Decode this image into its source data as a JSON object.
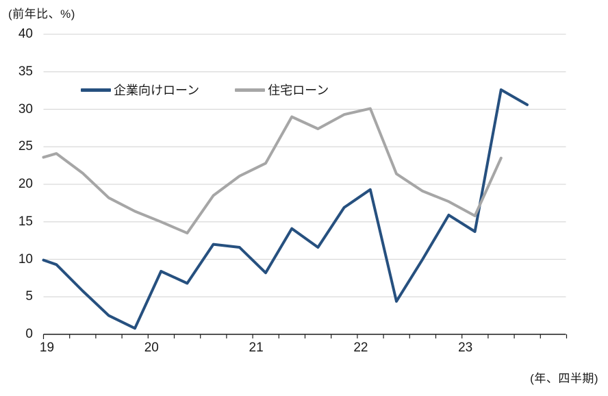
{
  "chart": {
    "unit_label": "(前年比、%)",
    "axis_note": "(年、四半期)"
  },
  "chart_data": {
    "type": "line",
    "title": "(前年比、%)",
    "x_axis_note": "(年、四半期)",
    "categories": [
      "2019Q1",
      "2019Q2",
      "2019Q3",
      "2019Q4",
      "2020Q1",
      "2020Q2",
      "2020Q3",
      "2020Q4",
      "2021Q1",
      "2021Q2",
      "2021Q3",
      "2021Q4",
      "2022Q1",
      "2022Q2",
      "2022Q3",
      "2022Q4",
      "2023Q1",
      "2023Q2",
      "2023Q3"
    ],
    "x_tick_years": [
      "19",
      "20",
      "21",
      "22",
      "23"
    ],
    "ylim": [
      0,
      40
    ],
    "y_tick_step": 5,
    "grid": "horizontal",
    "legend_position": "top-inside",
    "axis_color": "#1a1a1a",
    "gridline_color": "#d9d9d9",
    "series": [
      {
        "name": "企業向けローン",
        "color": "#26507F",
        "axis_start_value": 9.9,
        "values": [
          9.3,
          5.8,
          2.5,
          0.8,
          8.4,
          6.8,
          12.0,
          11.6,
          8.2,
          14.1,
          11.6,
          16.9,
          19.3,
          4.4,
          10.0,
          15.9,
          13.7,
          32.6,
          30.6
        ]
      },
      {
        "name": "住宅ローン",
        "color": "#A6A6A6",
        "axis_start_value": 23.6,
        "values": [
          24.1,
          21.5,
          18.2,
          16.4,
          15.0,
          13.5,
          18.5,
          21.1,
          22.8,
          29.0,
          27.4,
          29.3,
          30.1,
          21.4,
          19.1,
          17.7,
          15.8,
          23.5,
          null
        ]
      }
    ]
  }
}
